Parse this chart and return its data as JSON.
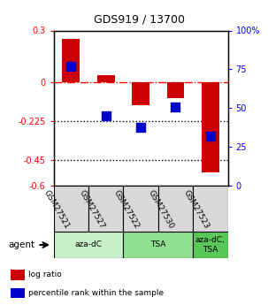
{
  "title": "GDS919 / 13700",
  "samples": [
    "GSM27521",
    "GSM27527",
    "GSM27522",
    "GSM27530",
    "GSM27523"
  ],
  "log_ratios": [
    0.25,
    0.04,
    -0.13,
    -0.09,
    -0.52
  ],
  "percentile_ranks": [
    77,
    45,
    38,
    51,
    32
  ],
  "ylim_left": [
    -0.6,
    0.3
  ],
  "ylim_right": [
    0,
    100
  ],
  "yticks_left": [
    0.3,
    0,
    -0.225,
    -0.45,
    -0.6
  ],
  "ytick_labels_left": [
    "0.3",
    "0",
    "-0.225",
    "-0.45",
    "-0.6"
  ],
  "yticks_right": [
    100,
    75,
    50,
    25,
    0
  ],
  "hlines_dotted": [
    -0.225,
    -0.45
  ],
  "hline_dashed": 0,
  "bar_color": "#cc0000",
  "dot_color": "#0000cc",
  "agent_groups": [
    {
      "label": "aza-dC",
      "start": 0,
      "end": 2,
      "color": "#c8f0c8"
    },
    {
      "label": "TSA",
      "start": 2,
      "end": 4,
      "color": "#90e090"
    },
    {
      "label": "aza-dC,\nTSA",
      "start": 4,
      "end": 5,
      "color": "#58c858"
    }
  ],
  "legend_items": [
    {
      "color": "#cc0000",
      "label": "log ratio"
    },
    {
      "color": "#0000cc",
      "label": "percentile rank within the sample"
    }
  ],
  "bar_width": 0.5,
  "dot_size": 55
}
